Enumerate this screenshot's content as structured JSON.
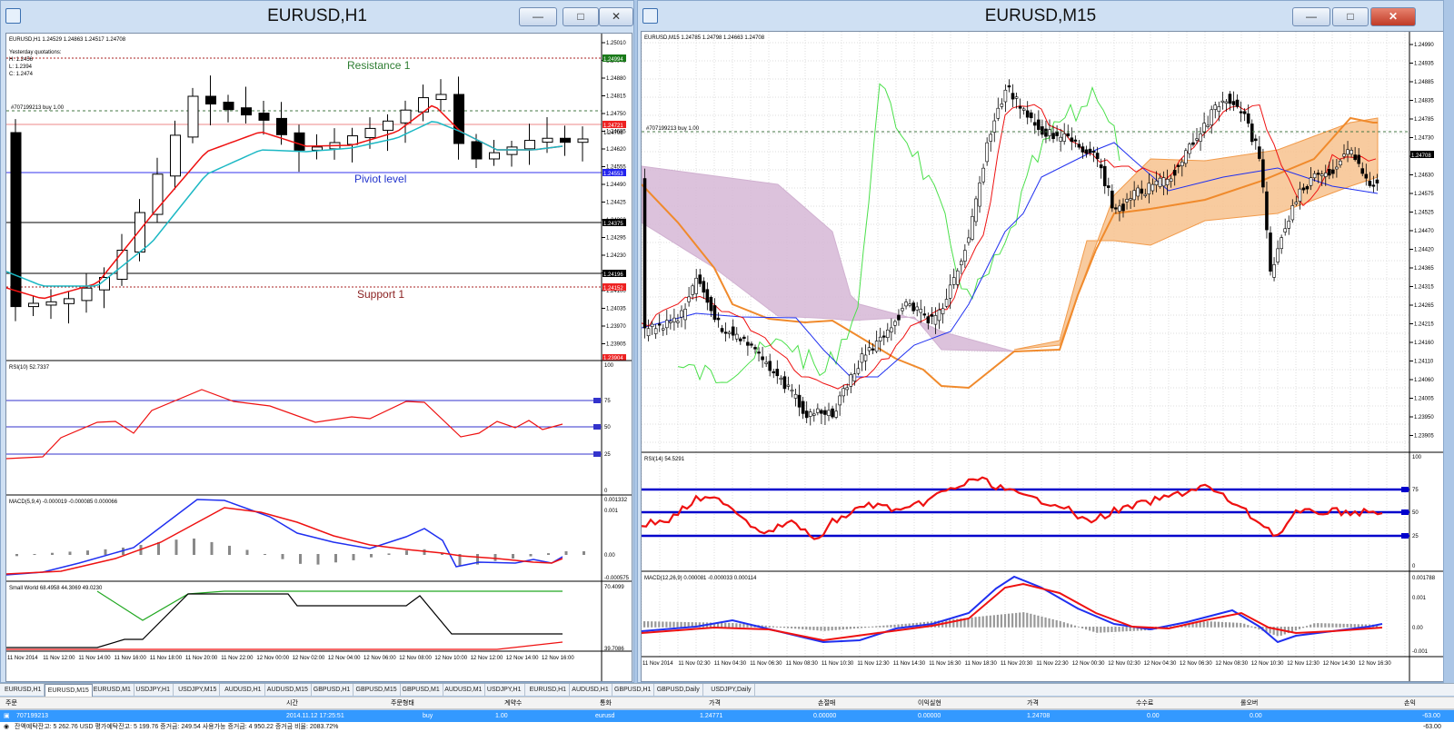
{
  "left_window": {
    "title": "EURUSD,H1",
    "info": "EURUSD,H1 1.24529 1.24863 1.24517 1.24708",
    "yesterday": [
      "Yesterday quotations:",
      "H: 1.2456",
      "L: 1.2394",
      "C: 1.2474"
    ],
    "order_label": "#707199213 buy 1.00",
    "levels": {
      "resistance": "Resistance 1",
      "pivot": "Piviot level",
      "support": "Support 1"
    },
    "price_ticks": [
      "1.25010",
      "1.24945",
      "1.24880",
      "1.24815",
      "1.24750",
      "1.24685",
      "1.24620",
      "1.24555",
      "1.24490",
      "1.24425",
      "1.24360",
      "1.24295",
      "1.24230",
      "1.24165",
      "1.24100",
      "1.24035",
      "1.23970",
      "1.23905"
    ],
    "price_boxes": {
      "resistance": "1.24994",
      "order": "1.24721",
      "order2": "1.24708",
      "pivot": "1.24553",
      "line_a": "1.24375",
      "line_b": "1.24196",
      "support": "1.24152",
      "bottom": "1.23904"
    },
    "rsi": {
      "label": "RSI(10) 52.7337",
      "ticks": [
        "100",
        "75",
        "50",
        "25",
        "0"
      ]
    },
    "macd": {
      "label": "MACD(5,9,4) -0.000019 -0.000085 0.000066",
      "ticks": [
        "0.001332",
        "0.001",
        "0.00",
        "-0.000575"
      ]
    },
    "small_world": {
      "label": "Small World 68.4958 44.3069 49.0230",
      "ticks": [
        "70.4099",
        "39.7086"
      ]
    },
    "time_labels": [
      "11 Nov 2014",
      "11 Nov 12:00",
      "11 Nov 14:00",
      "11 Nov 16:00",
      "11 Nov 18:00",
      "11 Nov 20:00",
      "11 Nov 22:00",
      "12 Nov 00:00",
      "12 Nov 02:00",
      "12 Nov 04:00",
      "12 Nov 06:00",
      "12 Nov 08:00",
      "12 Nov 10:00",
      "12 Nov 12:00",
      "12 Nov 14:00",
      "12 Nov 16:00"
    ]
  },
  "right_window": {
    "title": "EURUSD,M15",
    "info": "EURUSD,M15 1.24785 1.24798 1.24663 1.24708",
    "order_label": "#707199213 buy 1.00",
    "price_ticks": [
      "1.24990",
      "1.24935",
      "1.24885",
      "1.24835",
      "1.24785",
      "1.24730",
      "1.24680",
      "1.24630",
      "1.24575",
      "1.24525",
      "1.24470",
      "1.24420",
      "1.24365",
      "1.24315",
      "1.24265",
      "1.24215",
      "1.24160",
      "1.24110",
      "1.24060",
      "1.24005",
      "1.23950",
      "1.23905"
    ],
    "price_box": "1.24708",
    "rsi": {
      "label": "RSI(14) 54.5291",
      "ticks": [
        "100",
        "75",
        "50",
        "25",
        "0"
      ]
    },
    "macd": {
      "label": "MACD(12,26,9) 0.000081 -0.000033 0.000114",
      "ticks": [
        "0.001788",
        "0.001",
        "0.00",
        "-0.001"
      ]
    },
    "time_labels": [
      "11 Nov 2014",
      "11 Nov 02:30",
      "11 Nov 04:30",
      "11 Nov 06:30",
      "11 Nov 08:30",
      "11 Nov 10:30",
      "11 Nov 12:30",
      "11 Nov 14:30",
      "11 Nov 16:30",
      "11 Nov 18:30",
      "11 Nov 20:30",
      "11 Nov 22:30",
      "12 Nov 00:30",
      "12 Nov 02:30",
      "12 Nov 04:30",
      "12 Nov 06:30",
      "12 Nov 08:30",
      "12 Nov 10:30",
      "12 Nov 12:30",
      "12 Nov 14:30",
      "12 Nov 16:30"
    ]
  },
  "tabs": [
    "EURUSD,H1",
    "EURUSD,M15",
    "EURUSD,M1",
    "USDJPY,H1",
    "USDJPY,M15",
    "AUDUSD,H1",
    "AUDUSD,M15",
    "GBPUSD,H1",
    "GBPUSD,M15",
    "GBPUSD,M1",
    "AUDUSD,M1",
    "USDJPY,H1",
    "EURUSD,H1",
    "AUDUSD,H1",
    "GBPUSD,H1",
    "GBPUSD,Daily",
    "USDJPY,Daily"
  ],
  "active_tab": 1,
  "terminal": {
    "headers": [
      "주문",
      "시간",
      "주문형태",
      "계약수",
      "통화",
      "가격",
      "손절매",
      "이익실현",
      "가격",
      "수수료",
      "롤오버",
      "손익"
    ],
    "order": [
      "707199213",
      "2014.11.12 17:25:51",
      "buy",
      "1.00",
      "eurusd",
      "1.24771",
      "0.00000",
      "0.00000",
      "1.24708",
      "0.00",
      "0.00",
      "-63.00"
    ],
    "balance": "잔액예탁잔고: 5 262.76 USD  평가예탁잔고: 5 199.76  증거금: 249.54  사용가능 증거금: 4 950.22  증거금 비율: 2083.72%",
    "balance_total": "-63.00"
  },
  "colors": {
    "red": "#ee1111",
    "cyan": "#1cb8c4",
    "blue": "#1f2ff0",
    "orange": "#f08a2c",
    "lilac": "#c9a4c9",
    "green": "#22a822",
    "navy": "#0000cc"
  }
}
